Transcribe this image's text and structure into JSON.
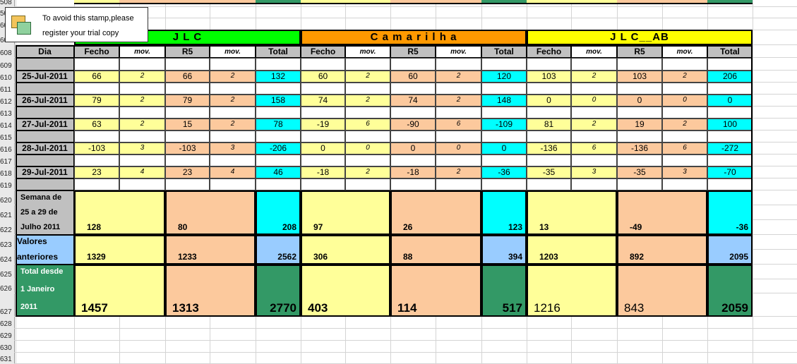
{
  "stamp": {
    "line1": "To avoid this stamp,please",
    "line2": "register your trial copy"
  },
  "row_headers": [
    "608",
    "609",
    "610",
    "611",
    "612",
    "613",
    "614",
    "615",
    "616",
    "617",
    "618",
    "619",
    "620",
    "621",
    "622",
    "623",
    "624",
    "625",
    "626",
    "627",
    "628",
    "629",
    "630",
    "631"
  ],
  "top_row_headers": [
    "508",
    "509",
    "60",
    "60"
  ],
  "groups": [
    {
      "name": "J  L  C",
      "color": "#00ff00"
    },
    {
      "name": "C a m a r i l h a",
      "color": "#ff9900"
    },
    {
      "name": "J L C__AB",
      "color": "#ffff00"
    }
  ],
  "header": {
    "dia": "Dia",
    "cols": [
      "Fecho",
      "mov.",
      "R5",
      "mov.",
      "Total"
    ]
  },
  "days": [
    {
      "date": "25-Jul-2011",
      "vals": [
        [
          "66",
          "2",
          "66",
          "2",
          "132"
        ],
        [
          "60",
          "2",
          "60",
          "2",
          "120"
        ],
        [
          "103",
          "2",
          "103",
          "2",
          "206"
        ]
      ]
    },
    {
      "date": "26-Jul-2011",
      "vals": [
        [
          "79",
          "2",
          "79",
          "2",
          "158"
        ],
        [
          "74",
          "2",
          "74",
          "2",
          "148"
        ],
        [
          "0",
          "0",
          "0",
          "0",
          "0"
        ]
      ]
    },
    {
      "date": "27-Jul-2011",
      "vals": [
        [
          "63",
          "2",
          "15",
          "2",
          "78"
        ],
        [
          "-19",
          "6",
          "-90",
          "6",
          "-109"
        ],
        [
          "81",
          "2",
          "19",
          "2",
          "100"
        ]
      ]
    },
    {
      "date": "28-Jul-2011",
      "vals": [
        [
          "-103",
          "3",
          "-103",
          "3",
          "-206"
        ],
        [
          "0",
          "0",
          "0",
          "0",
          "0"
        ],
        [
          "-136",
          "6",
          "-136",
          "6",
          "-272"
        ]
      ]
    },
    {
      "date": "29-Jul-2011",
      "vals": [
        [
          "23",
          "4",
          "23",
          "4",
          "46"
        ],
        [
          "-18",
          "2",
          "-18",
          "2",
          "-36"
        ],
        [
          "-35",
          "3",
          "-35",
          "3",
          "-70"
        ]
      ]
    }
  ],
  "summary": [
    {
      "label": [
        "Semana de",
        "25 a 29 de",
        "Julho 2011"
      ],
      "vals": [
        [
          "128",
          "80",
          "208"
        ],
        [
          "97",
          "26",
          "123"
        ],
        [
          "13",
          "-49",
          "-36"
        ]
      ]
    },
    {
      "label": [
        "Valores",
        "anteriores"
      ],
      "vals": [
        [
          "1329",
          "1233",
          "2562"
        ],
        [
          "306",
          "88",
          "394"
        ],
        [
          "1203",
          "892",
          "2095"
        ]
      ]
    },
    {
      "label": [
        "Total desde",
        "1 Janeiro",
        "2011"
      ],
      "vals": [
        [
          "1457",
          "1313",
          "2770"
        ],
        [
          "403",
          "114",
          "517"
        ],
        [
          "1216",
          "843",
          "2059"
        ]
      ]
    }
  ]
}
